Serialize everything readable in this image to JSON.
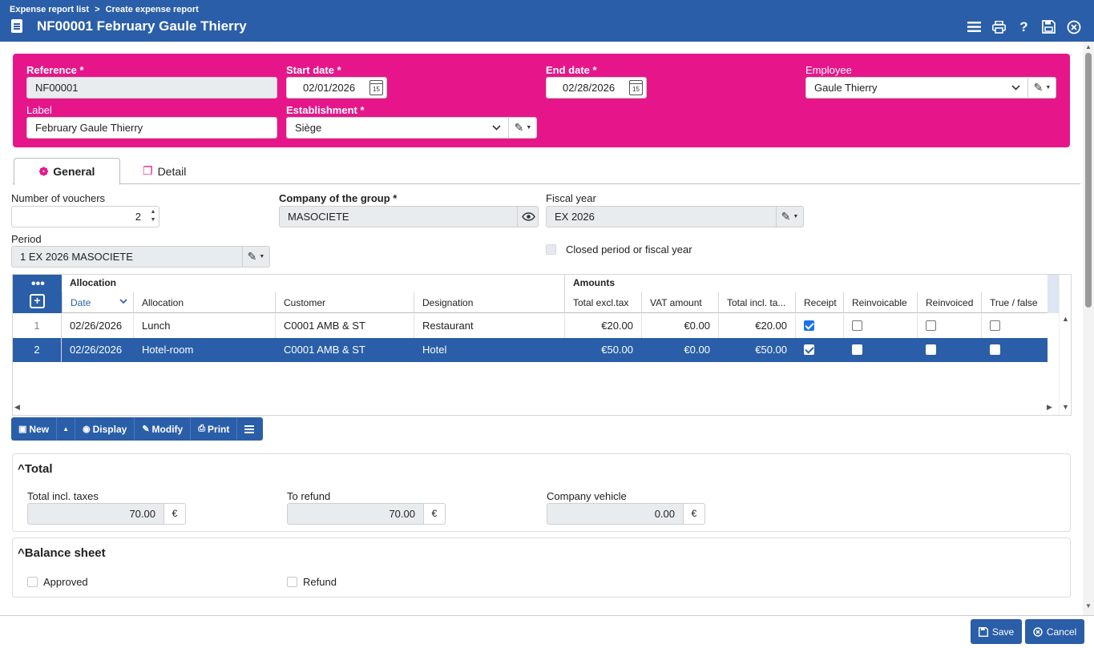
{
  "breadcrumb": [
    "Expense report list",
    ">",
    "Create expense report"
  ],
  "title": "NF00001 February Gaule Thierry",
  "colors": {
    "header": "#2a5ea8",
    "band": "#e6168a"
  },
  "icons": {
    "top_actions": [
      "menu-icon",
      "print-icon",
      "help-icon",
      "save-icon",
      "close-icon"
    ]
  },
  "header_form": {
    "reference": {
      "label": "Reference *",
      "value": "NF00001"
    },
    "label": {
      "label": "Label",
      "value": "February Gaule Thierry"
    },
    "start_date": {
      "label": "Start date *",
      "value": "02/01/2026"
    },
    "end_date": {
      "label": "End date *",
      "value": "02/28/2026"
    },
    "establishment": {
      "label": "Establishment *",
      "value": "Siège"
    },
    "employee": {
      "label": "Employee",
      "value": "Gaule Thierry"
    },
    "calendar_day": "15"
  },
  "tabs": [
    {
      "label": "General"
    },
    {
      "label": "Detail"
    }
  ],
  "general": {
    "vouchers": {
      "label": "Number of vouchers",
      "value": "2"
    },
    "company": {
      "label": "Company of the group *",
      "value": "MASOCIETE"
    },
    "fiscal_year": {
      "label": "Fiscal year",
      "value": "EX 2026"
    },
    "period": {
      "label": "Period",
      "value": "1 EX 2026 MASOCIETE"
    },
    "closed": {
      "label": "Closed period or fiscal year",
      "checked": false
    }
  },
  "grid": {
    "groups": {
      "allocation": "Allocation",
      "amounts": "Amounts"
    },
    "columns": [
      "Date",
      "Allocation",
      "Customer",
      "Designation",
      "Total excl.tax",
      "VAT amount",
      "Total incl. ta...",
      "Receipt",
      "Reinvoicable",
      "Reinvoiced",
      "True / false"
    ],
    "rows": [
      {
        "n": "1",
        "date": "02/26/2026",
        "allocation": "Lunch",
        "customer": "C0001 AMB & ST",
        "designation": "Restaurant",
        "excl": "€20.00",
        "vat": "€0.00",
        "incl": "€20.00",
        "receipt": true,
        "reinvoicable": false,
        "reinvoiced": false,
        "tf": false
      },
      {
        "n": "2",
        "date": "02/26/2026",
        "allocation": "Hotel-room",
        "customer": "C0001 AMB & ST",
        "designation": "Hotel",
        "excl": "€50.00",
        "vat": "€0.00",
        "incl": "€50.00",
        "receipt": true,
        "reinvoicable": false,
        "reinvoiced": false,
        "tf": false
      }
    ],
    "selected_row": 2
  },
  "toolbar": {
    "new": "New",
    "display": "Display",
    "modify": "Modify",
    "print": "Print"
  },
  "total": {
    "title": "Total",
    "incl_taxes": {
      "label": "Total incl. taxes",
      "value": "70.00"
    },
    "to_refund": {
      "label": "To refund",
      "value": "70.00"
    },
    "company_vehicle": {
      "label": "Company vehicle",
      "value": "0.00"
    },
    "currency": "€"
  },
  "balance": {
    "title": "Balance sheet",
    "approved": {
      "label": "Approved",
      "checked": false
    },
    "refund": {
      "label": "Refund",
      "checked": false
    }
  },
  "footer": {
    "save": "Save",
    "cancel": "Cancel"
  }
}
